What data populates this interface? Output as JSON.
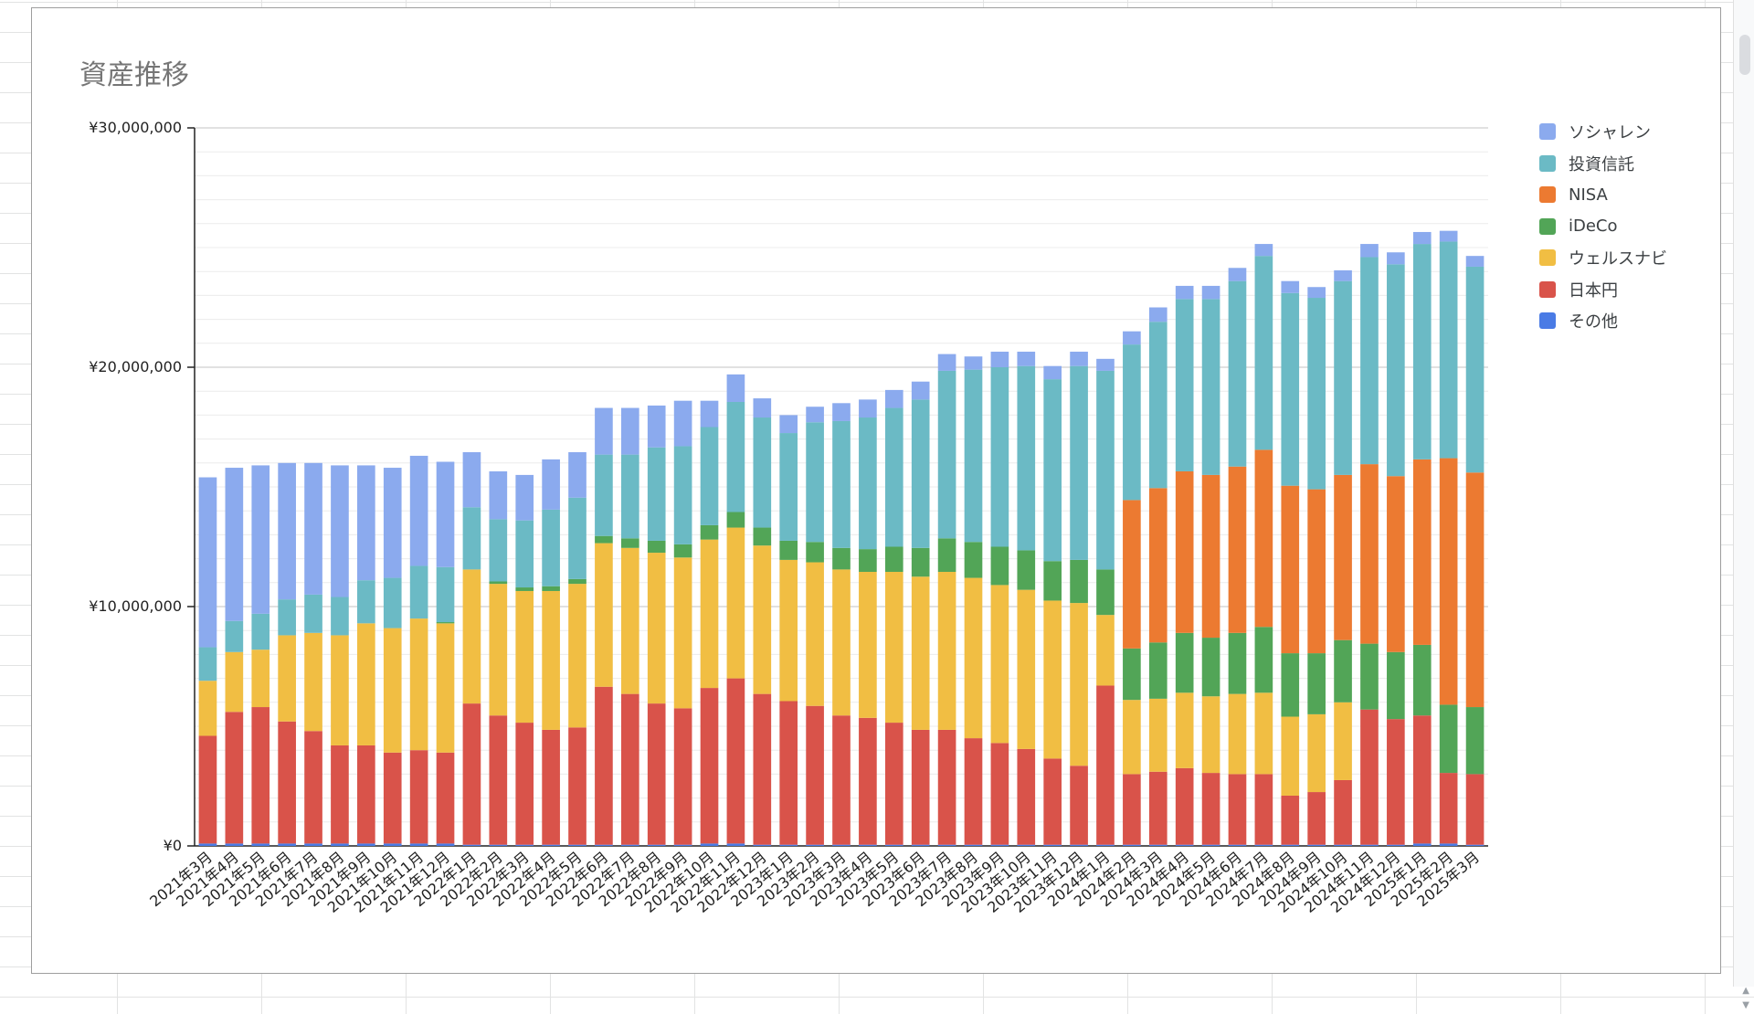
{
  "chart_data": {
    "type": "bar",
    "stacked": true,
    "title": "資産推移",
    "xlabel": "",
    "ylabel": "",
    "ylim": [
      0,
      30000000
    ],
    "yticks": [
      0,
      10000000,
      20000000,
      30000000
    ],
    "ytick_labels": [
      "¥0",
      "¥10,000,000",
      "¥20,000,000",
      "¥30,000,000"
    ],
    "grid": true,
    "legend_position": "right",
    "categories": [
      "2021年3月",
      "2021年4月",
      "2021年5月",
      "2021年6月",
      "2021年7月",
      "2021年8月",
      "2021年9月",
      "2021年10月",
      "2021年11月",
      "2021年12月",
      "2022年1月",
      "2022年2月",
      "2022年3月",
      "2022年4月",
      "2022年5月",
      "2022年6月",
      "2022年7月",
      "2022年8月",
      "2022年9月",
      "2022年10月",
      "2022年11月",
      "2022年12月",
      "2023年1月",
      "2023年2月",
      "2023年3月",
      "2023年4月",
      "2023年5月",
      "2023年6月",
      "2023年7月",
      "2023年8月",
      "2023年9月",
      "2023年10月",
      "2023年11月",
      "2023年12月",
      "2024年1月",
      "2024年2月",
      "2024年3月",
      "2024年4月",
      "2024年5月",
      "2024年6月",
      "2024年7月",
      "2024年8月",
      "2024年9月",
      "2024年10月",
      "2024年11月",
      "2024年12月",
      "2025年1月",
      "2025年2月",
      "2025年3月"
    ],
    "series": [
      {
        "name": "その他",
        "color": "#4a7be5",
        "values": [
          100000,
          100000,
          100000,
          100000,
          100000,
          100000,
          100000,
          100000,
          100000,
          100000,
          50000,
          50000,
          50000,
          50000,
          50000,
          50000,
          50000,
          50000,
          50000,
          100000,
          100000,
          50000,
          50000,
          50000,
          50000,
          50000,
          50000,
          50000,
          50000,
          50000,
          50000,
          50000,
          50000,
          50000,
          50000,
          50000,
          50000,
          50000,
          50000,
          50000,
          50000,
          50000,
          50000,
          50000,
          50000,
          50000,
          100000,
          100000,
          50000
        ]
      },
      {
        "name": "日本円",
        "color": "#d9534a",
        "values": [
          4500000,
          5500000,
          5700000,
          5100000,
          4700000,
          4100000,
          4100000,
          3800000,
          3900000,
          3800000,
          5900000,
          5400000,
          5100000,
          4800000,
          4900000,
          6600000,
          6300000,
          5900000,
          5700000,
          6500000,
          6900000,
          6300000,
          6000000,
          5800000,
          5400000,
          5300000,
          5100000,
          4800000,
          4800000,
          4450000,
          4250000,
          4000000,
          3600000,
          3300000,
          6650000,
          2950000,
          3050000,
          3200000,
          3000000,
          2950000,
          2950000,
          2050000,
          2200000,
          2700000,
          5650000,
          5250000,
          5350000,
          2950000,
          2950000
        ]
      },
      {
        "name": "ウェルスナビ",
        "color": "#f1be43",
        "values": [
          2300000,
          2500000,
          2400000,
          3600000,
          4100000,
          4600000,
          5100000,
          5200000,
          5500000,
          5400000,
          5600000,
          5500000,
          5500000,
          5800000,
          6000000,
          6000000,
          6100000,
          6300000,
          6300000,
          6200000,
          6300000,
          6200000,
          5900000,
          6000000,
          6100000,
          6100000,
          6300000,
          6400000,
          6600000,
          6700000,
          6600000,
          6650000,
          6600000,
          6800000,
          2950000,
          3100000,
          3050000,
          3150000,
          3200000,
          3350000,
          3400000,
          3300000,
          3250000,
          3250000,
          0,
          0,
          0,
          0,
          0
        ]
      },
      {
        "name": "iDeCo",
        "color": "#52a557",
        "values": [
          0,
          0,
          0,
          0,
          0,
          0,
          0,
          0,
          0,
          50000,
          0,
          100000,
          150000,
          200000,
          200000,
          300000,
          400000,
          500000,
          550000,
          600000,
          650000,
          750000,
          800000,
          850000,
          900000,
          950000,
          1050000,
          1200000,
          1400000,
          1500000,
          1600000,
          1650000,
          1650000,
          1800000,
          1900000,
          2150000,
          2350000,
          2500000,
          2450000,
          2550000,
          2750000,
          2650000,
          2550000,
          2600000,
          2750000,
          2800000,
          2950000,
          2850000,
          2800000
        ]
      },
      {
        "name": "NISA",
        "color": "#ec7a31",
        "values": [
          0,
          0,
          0,
          0,
          0,
          0,
          0,
          0,
          0,
          0,
          0,
          0,
          0,
          0,
          0,
          0,
          0,
          0,
          0,
          0,
          0,
          0,
          0,
          0,
          0,
          0,
          0,
          0,
          0,
          0,
          0,
          0,
          0,
          0,
          0,
          6200000,
          6450000,
          6750000,
          6800000,
          6950000,
          7400000,
          7000000,
          6850000,
          6900000,
          7500000,
          7350000,
          7750000,
          10300000,
          9800000
        ]
      },
      {
        "name": "投資信託",
        "color": "#6bbac5",
        "values": [
          1400000,
          1300000,
          1500000,
          1500000,
          1600000,
          1600000,
          1800000,
          2100000,
          2200000,
          2300000,
          2600000,
          2600000,
          2800000,
          3200000,
          3400000,
          3400000,
          3500000,
          3900000,
          4100000,
          4100000,
          4600000,
          4600000,
          4500000,
          5000000,
          5300000,
          5500000,
          5800000,
          6200000,
          7000000,
          7200000,
          7500000,
          7700000,
          7600000,
          8100000,
          8300000,
          6500000,
          6950000,
          7200000,
          7350000,
          7750000,
          8100000,
          8050000,
          8000000,
          8100000,
          8650000,
          8850000,
          9000000,
          9050000,
          8600000
        ]
      },
      {
        "name": "ソシャレン",
        "color": "#8baaee",
        "values": [
          7100000,
          6400000,
          6200000,
          5700000,
          5500000,
          5500000,
          4800000,
          4600000,
          4600000,
          4400000,
          2300000,
          2000000,
          1900000,
          2100000,
          1900000,
          1950000,
          1950000,
          1750000,
          1900000,
          1100000,
          1150000,
          800000,
          750000,
          650000,
          750000,
          750000,
          750000,
          750000,
          700000,
          550000,
          650000,
          600000,
          550000,
          600000,
          500000,
          550000,
          600000,
          550000,
          550000,
          550000,
          500000,
          500000,
          450000,
          450000,
          550000,
          500000,
          500000,
          450000,
          450000
        ]
      }
    ]
  }
}
